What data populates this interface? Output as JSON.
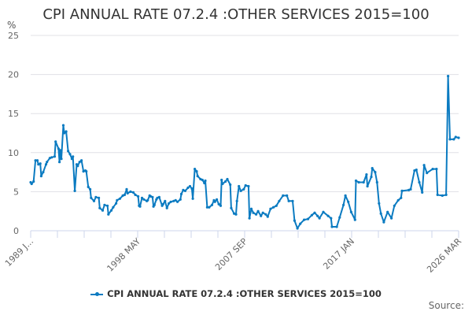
{
  "chart_data": {
    "type": "line",
    "title": "CPI ANNUAL RATE 07.2.4 :OTHER SERVICES 2015=100",
    "ylabel": "%",
    "xlabel": "",
    "ylim": [
      0,
      25
    ],
    "yticks": [
      0,
      5,
      10,
      15,
      20,
      25
    ],
    "xlim": [
      "1989-01",
      "2026-03"
    ],
    "xtick_labels": [
      "1989 J...",
      "1998 MAY",
      "2007 SEP",
      "2017 JAN",
      "2026 MAR"
    ],
    "grid": true,
    "legend": "bottom",
    "color": "#0b7bc1",
    "series": [
      {
        "name": "CPI ANNUAL RATE 07.2.4 :OTHER SERVICES 2015=100",
        "points": [
          [
            "1989-01",
            6.2
          ],
          [
            "1989-02",
            6.0
          ],
          [
            "1989-04",
            6.3
          ],
          [
            "1989-06",
            9.0
          ],
          [
            "1989-08",
            9.0
          ],
          [
            "1989-09",
            8.5
          ],
          [
            "1989-11",
            8.6
          ],
          [
            "1989-12",
            7.0
          ],
          [
            "1990-02",
            7.5
          ],
          [
            "1990-05",
            8.5
          ],
          [
            "1990-06",
            8.8
          ],
          [
            "1990-09",
            9.3
          ],
          [
            "1990-11",
            9.4
          ],
          [
            "1991-02",
            9.5
          ],
          [
            "1991-03",
            11.4
          ],
          [
            "1991-06",
            10.5
          ],
          [
            "1991-07",
            8.8
          ],
          [
            "1991-08",
            10.3
          ],
          [
            "1991-09",
            9.2
          ],
          [
            "1991-11",
            13.5
          ],
          [
            "1991-12",
            12.5
          ],
          [
            "1992-02",
            12.7
          ],
          [
            "1992-04",
            10.2
          ],
          [
            "1992-06",
            9.8
          ],
          [
            "1992-08",
            9.2
          ],
          [
            "1992-09",
            9.5
          ],
          [
            "1992-11",
            5.1
          ],
          [
            "1993-01",
            8.5
          ],
          [
            "1993-02",
            8.3
          ],
          [
            "1993-04",
            8.8
          ],
          [
            "1993-06",
            9.0
          ],
          [
            "1993-08",
            7.6
          ],
          [
            "1993-10",
            7.7
          ],
          [
            "1993-11",
            7.6
          ],
          [
            "1994-01",
            5.6
          ],
          [
            "1994-03",
            5.3
          ],
          [
            "1994-04",
            4.2
          ],
          [
            "1994-07",
            3.8
          ],
          [
            "1994-09",
            4.3
          ],
          [
            "1994-12",
            4.2
          ],
          [
            "1995-01",
            2.9
          ],
          [
            "1995-04",
            2.6
          ],
          [
            "1995-06",
            3.3
          ],
          [
            "1995-09",
            3.2
          ],
          [
            "1995-10",
            2.1
          ],
          [
            "1996-01",
            2.6
          ],
          [
            "1996-03",
            3.0
          ],
          [
            "1996-06",
            3.5
          ],
          [
            "1996-07",
            3.9
          ],
          [
            "1996-10",
            4.1
          ],
          [
            "1997-01",
            4.5
          ],
          [
            "1997-03",
            4.6
          ],
          [
            "1997-05",
            5.3
          ],
          [
            "1997-06",
            4.8
          ],
          [
            "1997-09",
            5.0
          ],
          [
            "1997-12",
            4.9
          ],
          [
            "1998-02",
            4.6
          ],
          [
            "1998-05",
            4.4
          ],
          [
            "1998-06",
            3.2
          ],
          [
            "1998-07",
            3.1
          ],
          [
            "1998-09",
            4.2
          ],
          [
            "1998-11",
            4.0
          ],
          [
            "1999-02",
            3.8
          ],
          [
            "1999-03",
            3.9
          ],
          [
            "1999-05",
            4.5
          ],
          [
            "1999-06",
            4.4
          ],
          [
            "1999-08",
            4.3
          ],
          [
            "1999-09",
            3.1
          ],
          [
            "1999-10",
            3.3
          ],
          [
            "1999-12",
            4.0
          ],
          [
            "2000-01",
            4.2
          ],
          [
            "2000-03",
            4.3
          ],
          [
            "2000-06",
            3.2
          ],
          [
            "2000-07",
            3.4
          ],
          [
            "2000-09",
            3.8
          ],
          [
            "2000-11",
            2.9
          ],
          [
            "2001-01",
            3.5
          ],
          [
            "2001-03",
            3.7
          ],
          [
            "2001-06",
            3.8
          ],
          [
            "2001-08",
            3.9
          ],
          [
            "2001-10",
            3.7
          ],
          [
            "2002-01",
            4.0
          ],
          [
            "2002-02",
            4.7
          ],
          [
            "2002-04",
            5.2
          ],
          [
            "2002-06",
            5.1
          ],
          [
            "2002-09",
            5.5
          ],
          [
            "2002-11",
            5.7
          ],
          [
            "2003-01",
            5.4
          ],
          [
            "2003-02",
            4.1
          ],
          [
            "2003-04",
            7.9
          ],
          [
            "2003-06",
            7.6
          ],
          [
            "2003-07",
            7.0
          ],
          [
            "2003-10",
            6.6
          ],
          [
            "2003-12",
            6.5
          ],
          [
            "2004-02",
            6.1
          ],
          [
            "2004-03",
            6.4
          ],
          [
            "2004-05",
            3.0
          ],
          [
            "2004-07",
            3.0
          ],
          [
            "2004-10",
            3.3
          ],
          [
            "2004-12",
            3.9
          ],
          [
            "2005-01",
            3.7
          ],
          [
            "2005-03",
            4.0
          ],
          [
            "2005-05",
            3.4
          ],
          [
            "2005-07",
            3.2
          ],
          [
            "2005-08",
            6.5
          ],
          [
            "2005-09",
            6.0
          ],
          [
            "2005-12",
            6.3
          ],
          [
            "2006-02",
            6.6
          ],
          [
            "2006-05",
            5.9
          ],
          [
            "2006-06",
            2.9
          ],
          [
            "2006-09",
            2.2
          ],
          [
            "2006-11",
            2.1
          ],
          [
            "2006-12",
            3.8
          ],
          [
            "2007-02",
            5.7
          ],
          [
            "2007-04",
            5.1
          ],
          [
            "2007-07",
            5.3
          ],
          [
            "2007-09",
            5.8
          ],
          [
            "2007-12",
            5.7
          ],
          [
            "2008-01",
            1.6
          ],
          [
            "2008-03",
            2.8
          ],
          [
            "2008-05",
            2.3
          ],
          [
            "2008-08",
            2.1
          ],
          [
            "2008-10",
            2.5
          ],
          [
            "2009-01",
            1.9
          ],
          [
            "2009-03",
            2.3
          ],
          [
            "2009-06",
            2.1
          ],
          [
            "2009-08",
            1.8
          ],
          [
            "2009-11",
            2.8
          ],
          [
            "2010-02",
            3.0
          ],
          [
            "2010-05",
            3.2
          ],
          [
            "2010-08",
            3.8
          ],
          [
            "2010-12",
            4.5
          ],
          [
            "2011-04",
            4.5
          ],
          [
            "2011-06",
            3.8
          ],
          [
            "2011-10",
            3.8
          ],
          [
            "2011-12",
            1.3
          ],
          [
            "2012-03",
            0.3
          ],
          [
            "2012-06",
            0.9
          ],
          [
            "2012-10",
            1.4
          ],
          [
            "2013-02",
            1.5
          ],
          [
            "2013-06",
            2.0
          ],
          [
            "2013-09",
            2.3
          ],
          [
            "2013-12",
            1.9
          ],
          [
            "2014-02",
            1.6
          ],
          [
            "2014-06",
            2.4
          ],
          [
            "2014-11",
            1.9
          ],
          [
            "2015-02",
            1.6
          ],
          [
            "2015-03",
            0.5
          ],
          [
            "2015-08",
            0.5
          ],
          [
            "2015-11",
            1.7
          ],
          [
            "2016-03",
            3.3
          ],
          [
            "2016-05",
            4.5
          ],
          [
            "2016-08",
            3.7
          ],
          [
            "2016-11",
            2.4
          ],
          [
            "2017-03",
            1.4
          ],
          [
            "2017-04",
            6.4
          ],
          [
            "2017-07",
            6.2
          ],
          [
            "2017-12",
            6.2
          ],
          [
            "2018-03",
            7.2
          ],
          [
            "2018-04",
            5.7
          ],
          [
            "2018-08",
            6.9
          ],
          [
            "2018-09",
            8.0
          ],
          [
            "2018-12",
            7.5
          ],
          [
            "2019-02",
            6.2
          ],
          [
            "2019-04",
            3.5
          ],
          [
            "2019-06",
            2.2
          ],
          [
            "2019-09",
            1.1
          ],
          [
            "2020-01",
            2.4
          ],
          [
            "2020-05",
            1.6
          ],
          [
            "2020-08",
            3.2
          ],
          [
            "2020-12",
            3.9
          ],
          [
            "2021-03",
            4.2
          ],
          [
            "2021-04",
            5.1
          ],
          [
            "2021-11",
            5.2
          ],
          [
            "2022-01",
            5.3
          ],
          [
            "2022-05",
            7.7
          ],
          [
            "2022-07",
            7.8
          ],
          [
            "2022-10",
            6.2
          ],
          [
            "2023-01",
            4.9
          ],
          [
            "2023-03",
            8.4
          ],
          [
            "2023-06",
            7.4
          ],
          [
            "2023-12",
            7.9
          ],
          [
            "2024-04",
            7.9
          ],
          [
            "2024-05",
            4.6
          ],
          [
            "2024-10",
            4.5
          ],
          [
            "2025-02",
            4.6
          ],
          [
            "2025-04",
            19.8
          ],
          [
            "2025-06",
            11.7
          ],
          [
            "2025-10",
            11.7
          ],
          [
            "2025-12",
            12.0
          ],
          [
            "2026-03",
            11.9
          ]
        ]
      }
    ],
    "source_label": "Source:"
  }
}
